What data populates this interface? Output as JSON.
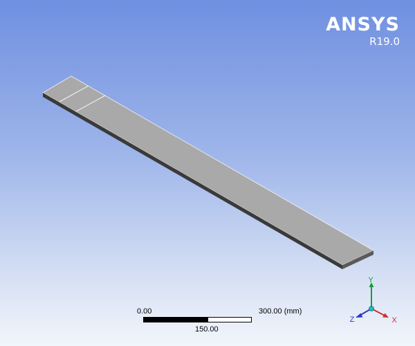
{
  "brand": {
    "name": "ANSYS",
    "version": "R19.0"
  },
  "scale_bar": {
    "left_label": "0.00",
    "right_label": "300.00 (mm)",
    "mid_label": "150.00"
  },
  "triad": {
    "y_label": "Y",
    "x_label": "X",
    "z_label": "Z"
  },
  "colors": {
    "background_top": "#6f8fe0",
    "background_bottom": "#f2f5fb",
    "model_face": "#a9a9a9",
    "axis_x": "#d03030",
    "axis_y": "#1a9a3a",
    "axis_z": "#2838c8"
  }
}
